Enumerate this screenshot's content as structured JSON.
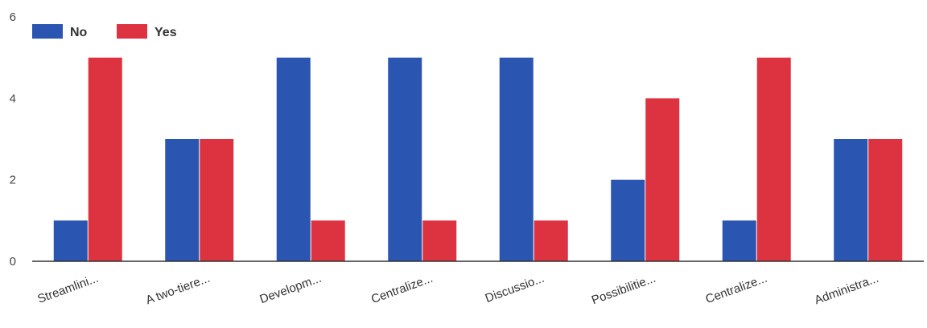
{
  "chart_data": {
    "type": "bar",
    "categories": [
      "Streamlini...",
      "A two-tiere...",
      "Developm...",
      "Centralize...",
      "Discussio...",
      "Possibilitie...",
      "Centralize...",
      "Administra..."
    ],
    "series": [
      {
        "name": "No",
        "color": "#2a55b0",
        "values": [
          1,
          3,
          5,
          5,
          5,
          2,
          1,
          3
        ]
      },
      {
        "name": "Yes",
        "color": "#dd3341",
        "values": [
          5,
          3,
          1,
          1,
          1,
          4,
          5,
          3
        ]
      }
    ],
    "title": "",
    "xlabel": "",
    "ylabel": "",
    "ylim": [
      0,
      6
    ],
    "yticks": [
      "0",
      "2",
      "4",
      "6"
    ],
    "grid": false,
    "legend_position": "top-left"
  }
}
